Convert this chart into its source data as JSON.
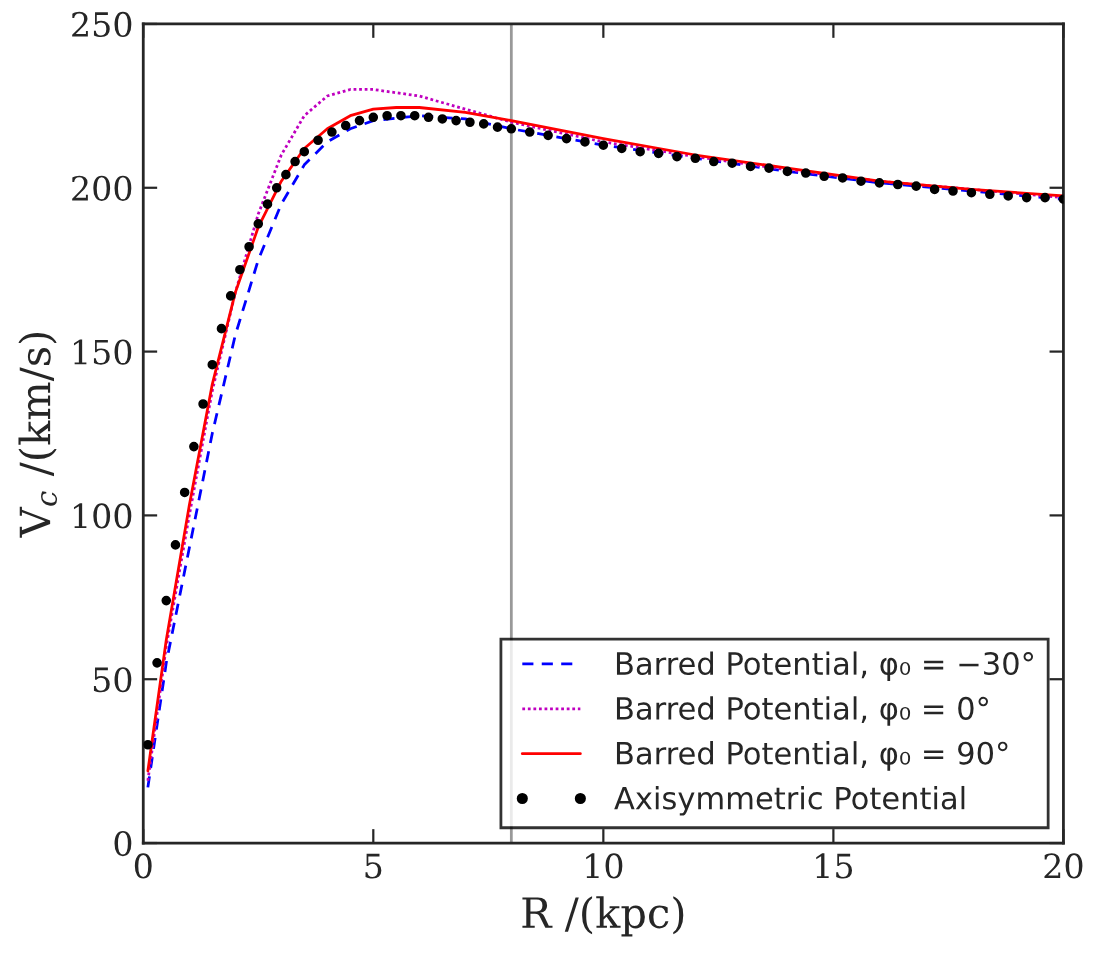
{
  "chart_data": {
    "type": "line",
    "xlabel": "R /(kpc)",
    "ylabel": "V$_{c}$ /(km/s)",
    "xlim": [
      0,
      20
    ],
    "ylim": [
      0,
      250
    ],
    "xticks": [
      0,
      5,
      10,
      15,
      20
    ],
    "yticks": [
      0,
      50,
      100,
      150,
      200,
      250
    ],
    "grid": false,
    "legend": "bottom right",
    "ref_lines": [
      {
        "axis": "x",
        "value": 8,
        "color": "#999999",
        "line_style": "solid"
      }
    ],
    "series": [
      {
        "name": "Barred Potential, φ₀ = −30°",
        "color": "#0000ff",
        "line_style": "dashed",
        "x": [
          0.1,
          0.5,
          1,
          1.5,
          2,
          2.5,
          3,
          3.5,
          4,
          4.5,
          5,
          6,
          7,
          8,
          10,
          12,
          14,
          16,
          18,
          20
        ],
        "values": [
          17,
          55,
          90,
          125,
          155,
          178,
          195,
          207,
          214,
          218,
          220.5,
          222,
          221,
          218,
          213,
          209,
          205,
          201.5,
          199,
          196.5
        ]
      },
      {
        "name": "Barred Potential, φ₀ = 0°",
        "color": "#bf00bf",
        "line_style": "dotted",
        "x": [
          0.1,
          0.5,
          1,
          1.5,
          2,
          2.5,
          3,
          3.5,
          4,
          4.5,
          5,
          6,
          7,
          8,
          10,
          12,
          14,
          16,
          18,
          20
        ],
        "values": [
          19,
          60,
          100,
          138,
          168,
          192,
          210,
          222,
          228,
          230,
          230,
          228,
          224,
          220,
          214,
          209.5,
          205.5,
          202,
          199.5,
          197
        ]
      },
      {
        "name": "Barred Potential, φ₀ = 90°",
        "color": "#ff0000",
        "line_style": "solid",
        "x": [
          0.1,
          0.5,
          1,
          1.5,
          2,
          2.5,
          3,
          3.5,
          4,
          4.5,
          5,
          5.5,
          6,
          7,
          8,
          10,
          12,
          14,
          16,
          18,
          20
        ],
        "values": [
          22,
          62,
          103,
          140,
          168,
          188,
          202,
          212,
          218,
          222,
          224,
          224.5,
          224.5,
          223,
          220.5,
          215,
          210,
          206,
          202,
          199.5,
          197.5
        ]
      },
      {
        "name": "Axisymmetric Potential",
        "type": "scatter",
        "marker": "circle",
        "color": "#000000",
        "x": [
          0.1,
          0.3,
          0.5,
          0.7,
          0.9,
          1.1,
          1.3,
          1.5,
          1.7,
          1.9,
          2.1,
          2.3,
          2.5,
          2.7,
          2.9,
          3.1,
          3.3,
          3.5,
          3.8,
          4.1,
          4.4,
          4.7,
          5.0,
          5.3,
          5.6,
          5.9,
          6.2,
          6.5,
          6.8,
          7.1,
          7.4,
          7.7,
          8.0,
          8.4,
          8.8,
          9.2,
          9.6,
          10.0,
          10.4,
          10.8,
          11.2,
          11.6,
          12.0,
          12.4,
          12.8,
          13.2,
          13.6,
          14.0,
          14.4,
          14.8,
          15.2,
          15.6,
          16.0,
          16.4,
          16.8,
          17.2,
          17.6,
          18.0,
          18.4,
          18.8,
          19.2,
          19.6,
          20.0
        ],
        "values": [
          30,
          55,
          74,
          91,
          107,
          121,
          134,
          146,
          157,
          167,
          175,
          182,
          189,
          195,
          200,
          204,
          208,
          211,
          214.5,
          217,
          219,
          220.5,
          221.5,
          222,
          222,
          222,
          221.5,
          221,
          220.5,
          220,
          219.5,
          218.5,
          218,
          217,
          216,
          215,
          214,
          213,
          212,
          211,
          210.5,
          209.5,
          209,
          208,
          207.5,
          206.5,
          206,
          205,
          204.5,
          203.5,
          203,
          202,
          201.5,
          201,
          200.5,
          199.5,
          199,
          198.5,
          198,
          197.5,
          197,
          197,
          196.5
        ]
      }
    ]
  }
}
